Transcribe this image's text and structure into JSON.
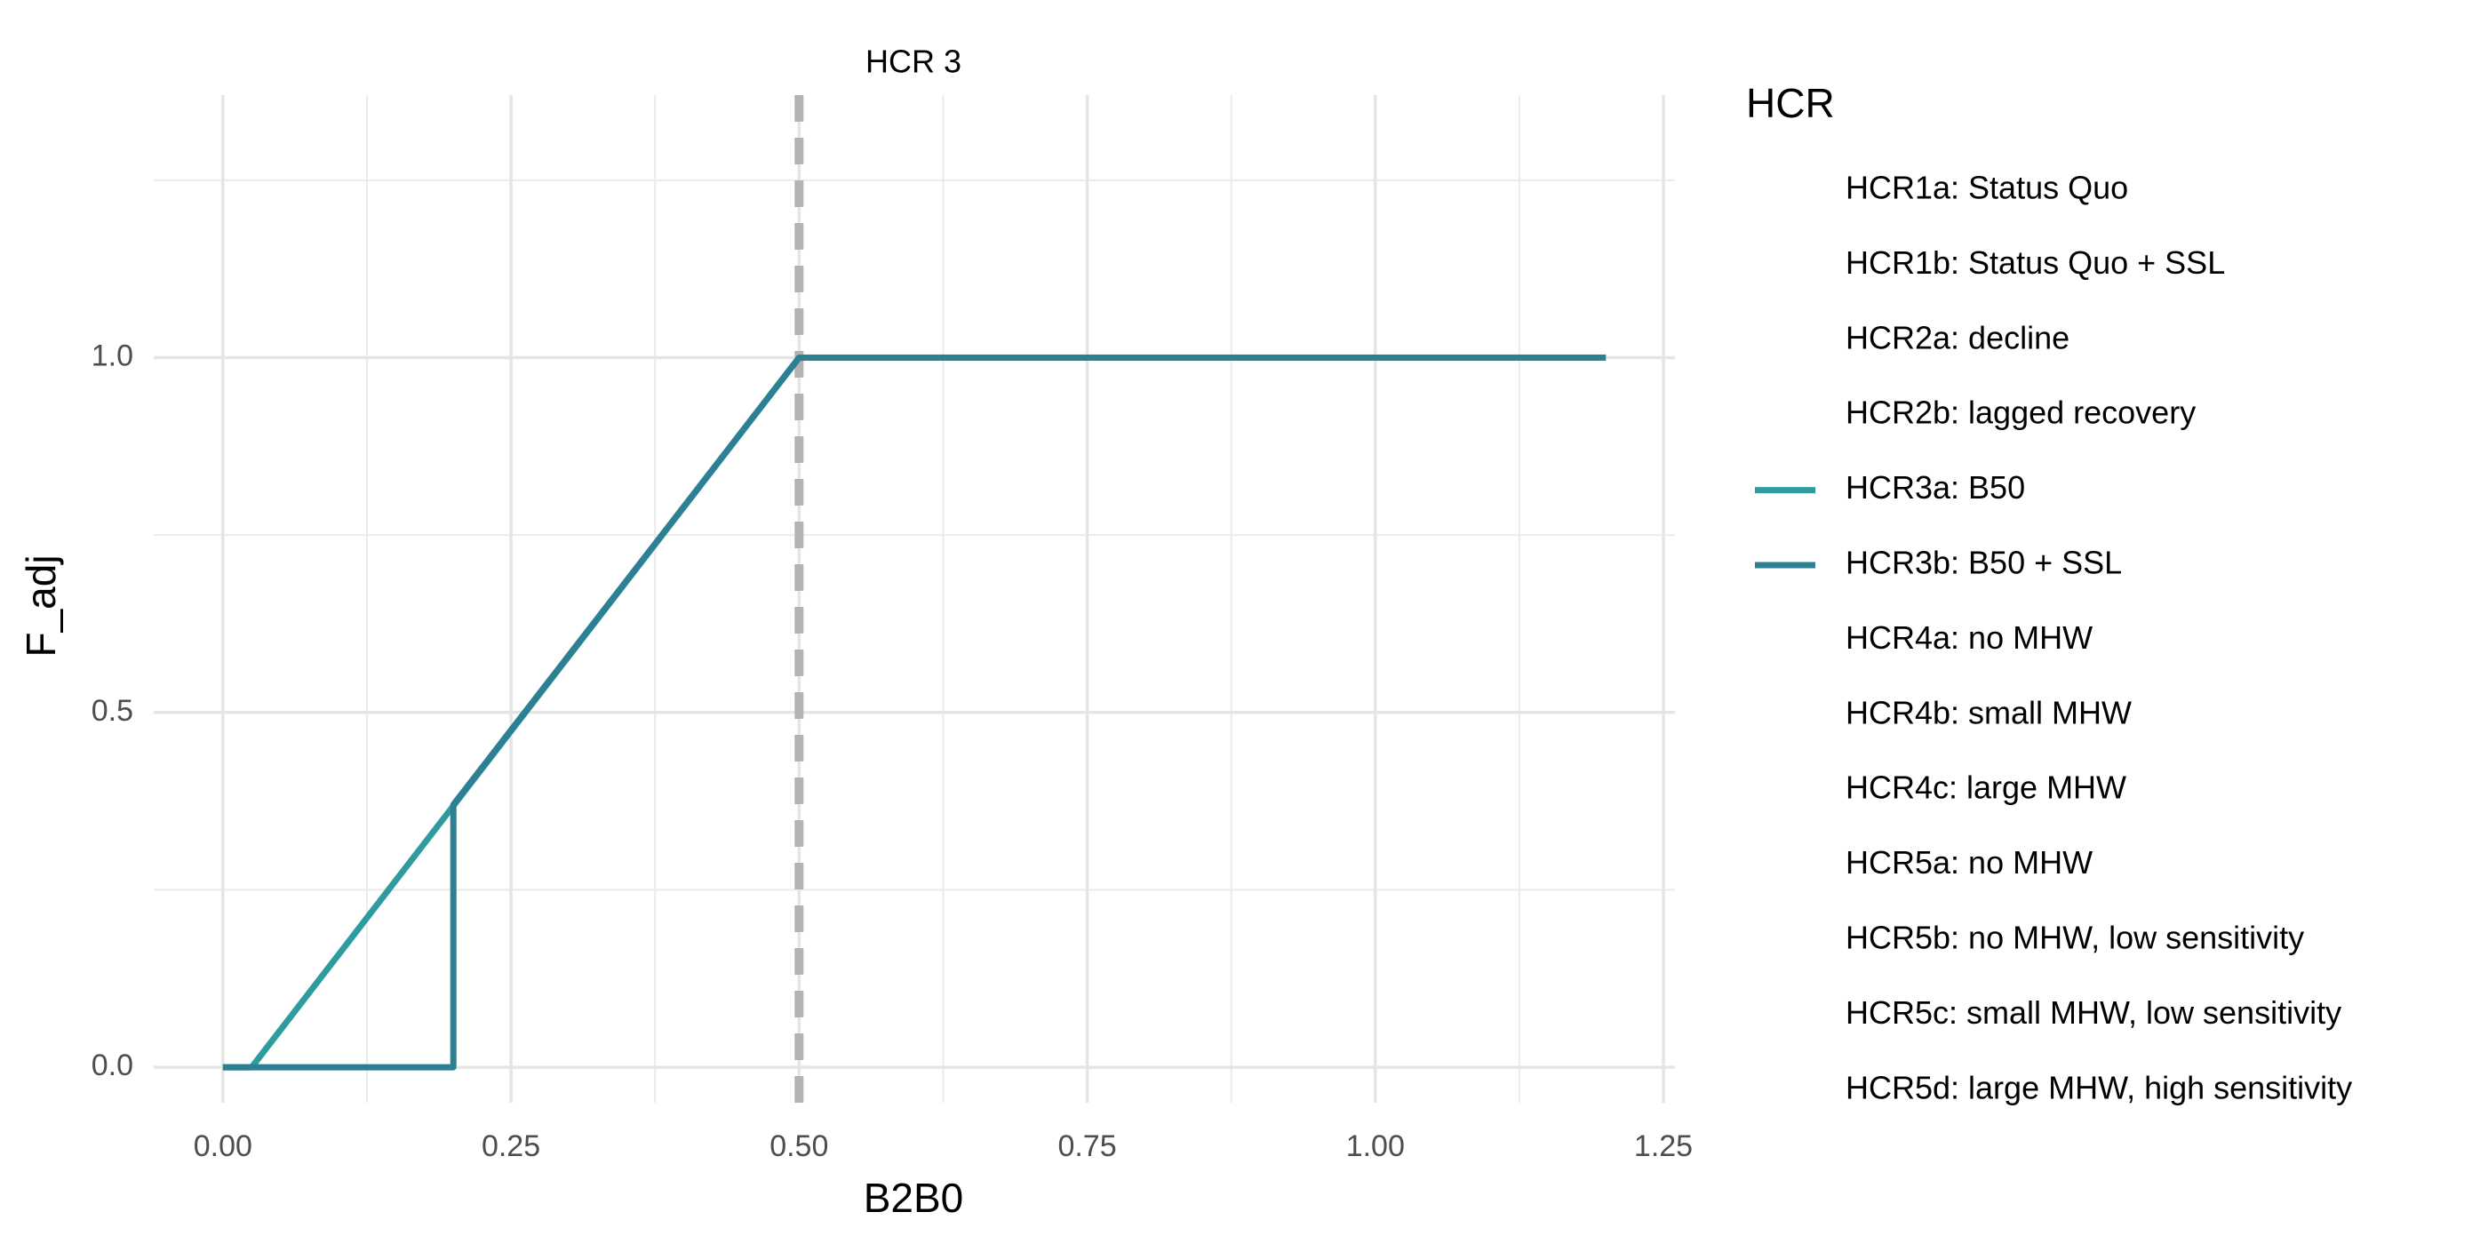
{
  "chart_data": {
    "type": "line",
    "facet_title": "HCR 3",
    "x_label": "B2B0",
    "y_label": "F_adj",
    "legend_title": "HCR",
    "legend_position": "right",
    "grid": true,
    "xlim": [
      -0.06,
      1.26
    ],
    "ylim": [
      -0.05,
      1.37
    ],
    "xticks": [
      {
        "value": 0,
        "label": "0.00"
      },
      {
        "value": 0.25,
        "label": "0.25"
      },
      {
        "value": 0.5,
        "label": "0.50"
      },
      {
        "value": 0.75,
        "label": "0.75"
      },
      {
        "value": 1,
        "label": "1.00"
      },
      {
        "value": 1.25,
        "label": "1.25"
      }
    ],
    "yticks": [
      {
        "value": 0,
        "label": "0.0"
      },
      {
        "value": 0.5,
        "label": "0.5"
      },
      {
        "value": 1,
        "label": "1.0"
      }
    ],
    "x_minor_ticks": [
      0.125,
      0.375,
      0.625,
      0.875,
      1.125
    ],
    "y_minor_ticks": [
      0.25,
      0.75,
      1.25
    ],
    "vline": {
      "x": 0.5,
      "color": "#b3b3b3"
    },
    "series": [
      {
        "name": "HCR1a: Status Quo",
        "color": null,
        "x": [],
        "values": []
      },
      {
        "name": "HCR1b: Status Quo + SSL",
        "color": null,
        "x": [],
        "values": []
      },
      {
        "name": "HCR2a: decline",
        "color": null,
        "x": [],
        "values": []
      },
      {
        "name": "HCR2b: lagged recovery",
        "color": null,
        "x": [],
        "values": []
      },
      {
        "name": "HCR3a: B50",
        "color": "#2e9c9e",
        "x": [
          0,
          0.025,
          0.5,
          1.2
        ],
        "values": [
          0,
          0,
          1,
          1
        ]
      },
      {
        "name": "HCR3b: B50 + SSL",
        "color": "#2d7f94",
        "x": [
          0,
          0.2,
          0.2,
          0.5,
          1.2
        ],
        "values": [
          0,
          0,
          0.37,
          1,
          1
        ]
      },
      {
        "name": "HCR4a: no MHW",
        "color": null,
        "x": [],
        "values": []
      },
      {
        "name": "HCR4b: small MHW",
        "color": null,
        "x": [],
        "values": []
      },
      {
        "name": "HCR4c: large MHW",
        "color": null,
        "x": [],
        "values": []
      },
      {
        "name": "HCR5a: no MHW",
        "color": null,
        "x": [],
        "values": []
      },
      {
        "name": "HCR5b: no MHW, low sensitivity",
        "color": null,
        "x": [],
        "values": []
      },
      {
        "name": "HCR5c: small MHW, low sensitivity",
        "color": null,
        "x": [],
        "values": []
      },
      {
        "name": "HCR5d: large MHW, high sensitivity",
        "color": null,
        "x": [],
        "values": []
      }
    ]
  }
}
